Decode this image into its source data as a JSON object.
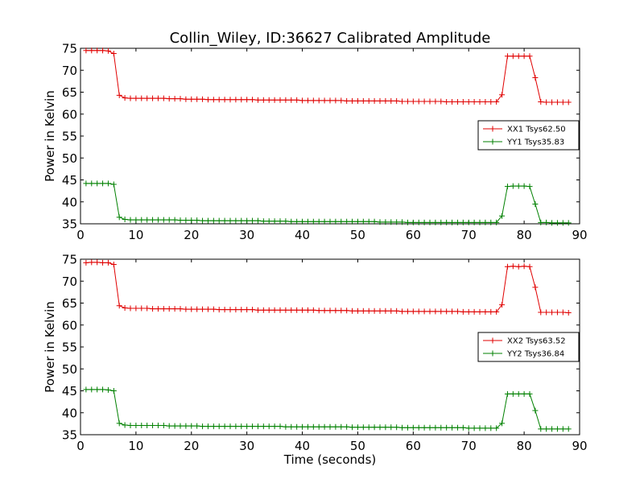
{
  "figure": {
    "title": "Collin_Wiley, ID:36627 Calibrated Amplitude"
  },
  "colors": {
    "xx": "#e00000",
    "yy": "#008000"
  },
  "chart_data": [
    {
      "type": "line",
      "xlabel": "",
      "ylabel": "Power in Kelvin",
      "xlim": [
        0,
        90
      ],
      "ylim": [
        35,
        75
      ],
      "xticks": [
        0,
        10,
        20,
        30,
        40,
        50,
        60,
        70,
        80,
        90
      ],
      "yticks": [
        35,
        40,
        45,
        50,
        55,
        60,
        65,
        70,
        75
      ],
      "grid": false,
      "legend_position": "center-right",
      "x": [
        1,
        2,
        3,
        4,
        5,
        6,
        7,
        8,
        9,
        10,
        11,
        12,
        13,
        14,
        15,
        16,
        17,
        18,
        19,
        20,
        21,
        22,
        23,
        24,
        25,
        26,
        27,
        28,
        29,
        30,
        31,
        32,
        33,
        34,
        35,
        36,
        37,
        38,
        39,
        40,
        41,
        42,
        43,
        44,
        45,
        46,
        47,
        48,
        49,
        50,
        51,
        52,
        53,
        54,
        55,
        56,
        57,
        58,
        59,
        60,
        61,
        62,
        63,
        64,
        65,
        66,
        67,
        68,
        69,
        70,
        71,
        72,
        73,
        74,
        75,
        76,
        77,
        78,
        79,
        80,
        81,
        82,
        83,
        84,
        85,
        86,
        87,
        88
      ],
      "series": [
        {
          "name": "XX1 Tsys62.50",
          "color": "#e00000",
          "values": [
            74.5,
            74.5,
            74.5,
            74.5,
            74.4,
            73.8,
            64.3,
            63.7,
            63.6,
            63.6,
            63.6,
            63.6,
            63.6,
            63.6,
            63.6,
            63.5,
            63.5,
            63.5,
            63.4,
            63.4,
            63.4,
            63.4,
            63.3,
            63.3,
            63.3,
            63.3,
            63.3,
            63.3,
            63.3,
            63.3,
            63.3,
            63.2,
            63.2,
            63.2,
            63.2,
            63.2,
            63.2,
            63.2,
            63.2,
            63.1,
            63.1,
            63.1,
            63.1,
            63.1,
            63.1,
            63.1,
            63.1,
            63.0,
            63.0,
            63.0,
            63.0,
            63.0,
            63.0,
            63.0,
            63.0,
            63.0,
            63.0,
            62.9,
            62.9,
            62.9,
            62.9,
            62.9,
            62.9,
            62.9,
            62.9,
            62.8,
            62.8,
            62.8,
            62.8,
            62.8,
            62.8,
            62.8,
            62.8,
            62.8,
            62.8,
            64.4,
            73.2,
            73.2,
            73.2,
            73.2,
            73.2,
            68.3,
            62.8,
            62.7,
            62.7,
            62.7,
            62.7,
            62.7
          ]
        },
        {
          "name": "YY1 Tsys35.83",
          "color": "#008000",
          "values": [
            44.2,
            44.2,
            44.2,
            44.2,
            44.2,
            44.0,
            36.5,
            36.0,
            35.9,
            35.9,
            35.9,
            35.9,
            35.9,
            35.9,
            35.9,
            35.9,
            35.9,
            35.8,
            35.8,
            35.8,
            35.8,
            35.7,
            35.7,
            35.7,
            35.7,
            35.7,
            35.7,
            35.7,
            35.7,
            35.7,
            35.7,
            35.7,
            35.6,
            35.6,
            35.6,
            35.6,
            35.6,
            35.5,
            35.5,
            35.5,
            35.5,
            35.5,
            35.5,
            35.5,
            35.5,
            35.5,
            35.5,
            35.5,
            35.5,
            35.5,
            35.5,
            35.5,
            35.5,
            35.4,
            35.4,
            35.4,
            35.4,
            35.4,
            35.3,
            35.3,
            35.3,
            35.3,
            35.3,
            35.3,
            35.3,
            35.3,
            35.3,
            35.3,
            35.3,
            35.3,
            35.3,
            35.3,
            35.3,
            35.3,
            35.3,
            36.8,
            43.5,
            43.6,
            43.6,
            43.6,
            43.5,
            39.5,
            35.3,
            35.3,
            35.2,
            35.2,
            35.2,
            35.2
          ]
        }
      ]
    },
    {
      "type": "line",
      "xlabel": "Time (seconds)",
      "ylabel": "Power in Kelvin",
      "xlim": [
        0,
        90
      ],
      "ylim": [
        35,
        75
      ],
      "xticks": [
        0,
        10,
        20,
        30,
        40,
        50,
        60,
        70,
        80,
        90
      ],
      "yticks": [
        35,
        40,
        45,
        50,
        55,
        60,
        65,
        70,
        75
      ],
      "grid": false,
      "legend_position": "center-right",
      "x": [
        1,
        2,
        3,
        4,
        5,
        6,
        7,
        8,
        9,
        10,
        11,
        12,
        13,
        14,
        15,
        16,
        17,
        18,
        19,
        20,
        21,
        22,
        23,
        24,
        25,
        26,
        27,
        28,
        29,
        30,
        31,
        32,
        33,
        34,
        35,
        36,
        37,
        38,
        39,
        40,
        41,
        42,
        43,
        44,
        45,
        46,
        47,
        48,
        49,
        50,
        51,
        52,
        53,
        54,
        55,
        56,
        57,
        58,
        59,
        60,
        61,
        62,
        63,
        64,
        65,
        66,
        67,
        68,
        69,
        70,
        71,
        72,
        73,
        74,
        75,
        76,
        77,
        78,
        79,
        80,
        81,
        82,
        83,
        84,
        85,
        86,
        87,
        88
      ],
      "series": [
        {
          "name": "XX2 Tsys63.52",
          "color": "#e00000",
          "values": [
            74.2,
            74.3,
            74.3,
            74.2,
            74.2,
            73.8,
            64.4,
            63.9,
            63.8,
            63.8,
            63.8,
            63.8,
            63.7,
            63.7,
            63.7,
            63.7,
            63.7,
            63.7,
            63.6,
            63.6,
            63.6,
            63.6,
            63.6,
            63.6,
            63.5,
            63.5,
            63.5,
            63.5,
            63.5,
            63.5,
            63.5,
            63.4,
            63.4,
            63.4,
            63.4,
            63.4,
            63.4,
            63.4,
            63.4,
            63.4,
            63.4,
            63.4,
            63.3,
            63.3,
            63.3,
            63.3,
            63.3,
            63.3,
            63.2,
            63.2,
            63.2,
            63.2,
            63.2,
            63.2,
            63.2,
            63.2,
            63.2,
            63.1,
            63.1,
            63.1,
            63.1,
            63.1,
            63.1,
            63.1,
            63.1,
            63.1,
            63.1,
            63.1,
            63.0,
            63.0,
            63.0,
            63.0,
            63.0,
            63.0,
            63.0,
            64.6,
            73.3,
            73.4,
            73.3,
            73.4,
            73.3,
            68.6,
            62.9,
            62.9,
            62.9,
            62.9,
            62.9,
            62.8
          ]
        },
        {
          "name": "YY2 Tsys36.84",
          "color": "#008000",
          "values": [
            45.3,
            45.3,
            45.3,
            45.3,
            45.2,
            45.0,
            37.6,
            37.2,
            37.1,
            37.1,
            37.1,
            37.1,
            37.1,
            37.1,
            37.1,
            37.0,
            37.0,
            37.0,
            37.0,
            37.0,
            37.0,
            36.9,
            36.9,
            36.9,
            36.9,
            36.9,
            36.9,
            36.9,
            36.9,
            36.9,
            36.9,
            36.9,
            36.9,
            36.9,
            36.9,
            36.9,
            36.8,
            36.8,
            36.8,
            36.8,
            36.8,
            36.8,
            36.8,
            36.8,
            36.8,
            36.8,
            36.8,
            36.8,
            36.7,
            36.7,
            36.7,
            36.7,
            36.7,
            36.7,
            36.7,
            36.7,
            36.7,
            36.6,
            36.6,
            36.6,
            36.6,
            36.6,
            36.6,
            36.6,
            36.6,
            36.6,
            36.6,
            36.6,
            36.6,
            36.5,
            36.5,
            36.5,
            36.5,
            36.5,
            36.5,
            37.6,
            44.3,
            44.3,
            44.3,
            44.3,
            44.3,
            40.5,
            36.3,
            36.3,
            36.3,
            36.3,
            36.3,
            36.3
          ]
        }
      ]
    }
  ]
}
